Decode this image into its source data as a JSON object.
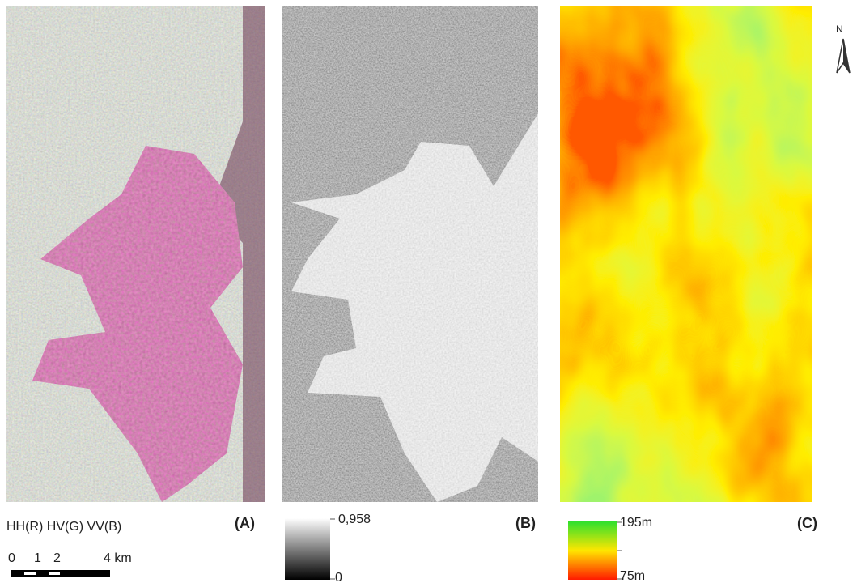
{
  "panels": [
    {
      "label": "(A)",
      "caption": "HH(R) HV(G) VV(B)"
    },
    {
      "label": "(B)"
    },
    {
      "label": "(C)"
    }
  ],
  "scale_bar": {
    "labels": [
      "0",
      "1",
      "2",
      "4 km"
    ]
  },
  "legend_b": {
    "max": "0,958",
    "min": "0"
  },
  "legend_c": {
    "max": "195m",
    "min": "75m"
  },
  "north": "N"
}
